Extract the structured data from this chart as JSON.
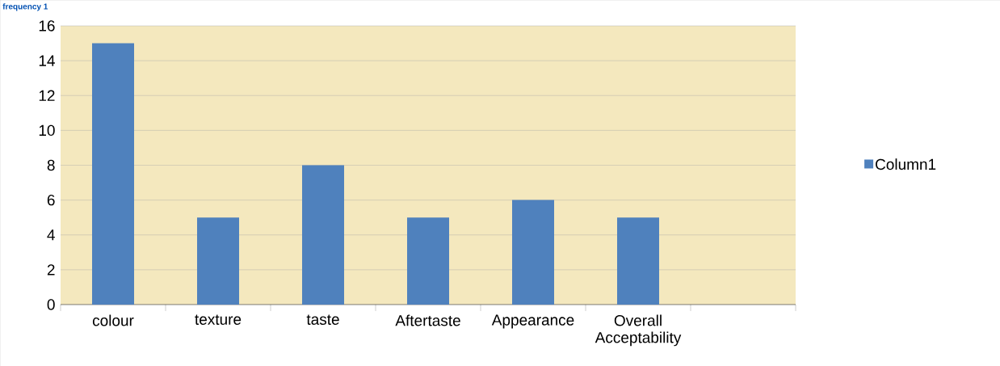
{
  "chart_data": {
    "type": "bar",
    "title": "frequency 1",
    "categories": [
      "colour",
      "texture",
      "taste",
      "Aftertaste",
      "Appearance",
      "Overall Acceptability",
      null
    ],
    "series": [
      {
        "name": "Column1",
        "color": "#4f81bd",
        "values": [
          15,
          5,
          8,
          5,
          6,
          5,
          null
        ]
      }
    ],
    "ylim": [
      0,
      16
    ],
    "yticks": [
      0,
      2,
      4,
      6,
      8,
      10,
      12,
      14,
      16
    ],
    "grid": "y",
    "legend": "right"
  }
}
